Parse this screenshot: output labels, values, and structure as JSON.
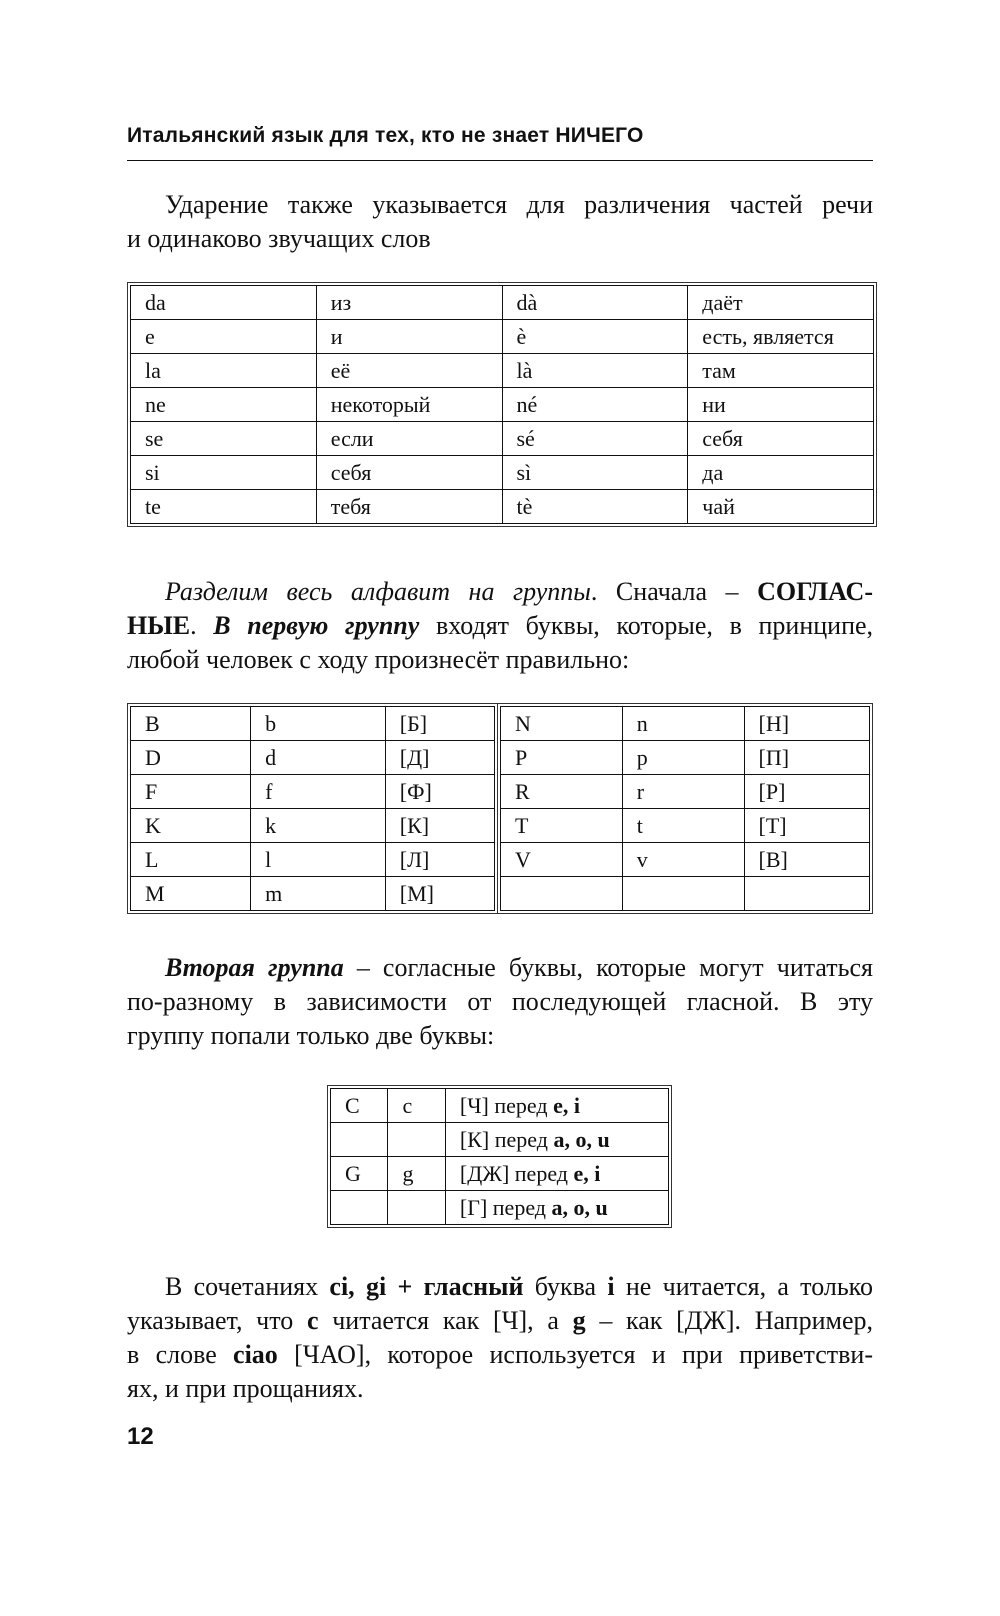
{
  "header": {
    "running_title": "Итальянский язык для тех, кто не знает НИЧЕГО"
  },
  "para1": [
    "Ударение также указывается для различения частей речи",
    "и одинаково звучащих слов"
  ],
  "accent_table": [
    [
      "da",
      "из",
      "dà",
      "даёт"
    ],
    [
      "e",
      "и",
      "è",
      "есть, является"
    ],
    [
      "la",
      "её",
      "là",
      "там"
    ],
    [
      "ne",
      "некоторый",
      "né",
      "ни"
    ],
    [
      "se",
      "если",
      "sé",
      "себя"
    ],
    [
      "si",
      "себя",
      "sì",
      "да"
    ],
    [
      "te",
      "тебя",
      "tè",
      "чай"
    ]
  ],
  "para2": {
    "l1": [
      "Разделим весь алфавит на группы",
      ". Сначала – ",
      "СОГЛАС-"
    ],
    "l2": [
      "НЫЕ",
      ". ",
      "В первую группу",
      " входят буквы, которые, в принципе,"
    ],
    "l3": "любой человек с ходу произнесёт правильно:"
  },
  "group1_left": [
    [
      "B",
      "b",
      "[Б]"
    ],
    [
      "D",
      "d",
      "[Д]"
    ],
    [
      "F",
      "f",
      "[Ф]"
    ],
    [
      "K",
      "k",
      "[К]"
    ],
    [
      "L",
      "l",
      "[Л]"
    ],
    [
      "M",
      "m",
      "[М]"
    ]
  ],
  "group1_right": [
    [
      "N",
      "n",
      "[Н]"
    ],
    [
      "P",
      "p",
      "[П]"
    ],
    [
      "R",
      "r",
      "[Р]"
    ],
    [
      "T",
      "t",
      "[Т]"
    ],
    [
      "V",
      "v",
      "[В]"
    ],
    [
      "",
      "",
      ""
    ]
  ],
  "para3": {
    "l1": [
      "Вторая группа",
      " – согласные буквы, которые могут читаться"
    ],
    "l2": "по-разному в зависимости от последующей гласной. В эту",
    "l3": "группу попали только две буквы:"
  },
  "group2": [
    {
      "upper": "C",
      "lower": "c",
      "pre": "[Ч] перед ",
      "bold": "e, i"
    },
    {
      "upper": "",
      "lower": "",
      "pre": "[К] перед ",
      "bold": "a, o, u"
    },
    {
      "upper": "G",
      "lower": "g",
      "pre": "[ДЖ] перед ",
      "bold": "e, i"
    },
    {
      "upper": "",
      "lower": "",
      "pre": "[Г] перед ",
      "bold": "a, o, u"
    }
  ],
  "para4": {
    "l1": [
      "В сочетаниях ",
      "ci, gi + гласный",
      " буква ",
      "i",
      " не читается, а только"
    ],
    "l2": [
      "указывает, что ",
      "c",
      " читается как [Ч], а ",
      "g",
      " – как [ДЖ]. Например,"
    ],
    "l3": [
      "в слове ",
      "ciao",
      " [ЧАО], которое используется и при приветстви-"
    ],
    "l4": "ях, и при прощаниях."
  },
  "page_number": "12"
}
